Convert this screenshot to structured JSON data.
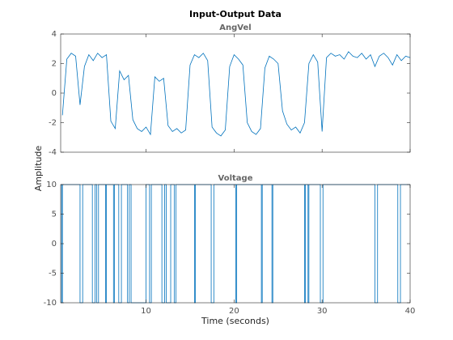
{
  "figure": {
    "title": "Input-Output Data",
    "ylabel": "Amplitude",
    "xlabel": "Time (seconds)"
  },
  "chart_data": [
    {
      "type": "line",
      "title": "AngVel",
      "xlim": [
        0.3,
        40
      ],
      "ylim": [
        -4,
        4
      ],
      "xticks": [
        10,
        20,
        30,
        40
      ],
      "yticks": [
        -4,
        -2,
        0,
        2,
        4
      ],
      "show_xtick_labels": false,
      "x": [
        0.5,
        1,
        1.5,
        2,
        2.5,
        3,
        3.5,
        4,
        4.5,
        5,
        5.5,
        6,
        6.5,
        7,
        7.5,
        8,
        8.5,
        9,
        9.5,
        10,
        10.5,
        11,
        11.5,
        12,
        12.5,
        13,
        13.5,
        14,
        14.5,
        15,
        15.5,
        16,
        16.5,
        17,
        17.5,
        18,
        18.5,
        19,
        19.5,
        20,
        20.5,
        21,
        21.5,
        22,
        22.5,
        23,
        23.5,
        24,
        24.5,
        25,
        25.5,
        26,
        26.5,
        27,
        27.5,
        28,
        28.5,
        29,
        29.5,
        30,
        30.5,
        31,
        31.5,
        32,
        32.5,
        33,
        33.5,
        34,
        34.5,
        35,
        35.5,
        36,
        36.5,
        37,
        37.5,
        38,
        38.5,
        39,
        39.5,
        40
      ],
      "series": [
        {
          "color": "#0072BD",
          "values": [
            -1.5,
            2.3,
            2.7,
            2.5,
            -0.8,
            1.8,
            2.6,
            2.2,
            2.7,
            2.4,
            2.6,
            -1.9,
            -2.4,
            1.5,
            0.9,
            1.2,
            -1.8,
            -2.4,
            -2.6,
            -2.3,
            -2.8,
            1.1,
            0.8,
            1.0,
            -2.2,
            -2.6,
            -2.4,
            -2.7,
            -2.5,
            1.9,
            2.6,
            2.4,
            2.7,
            2.2,
            -2.3,
            -2.7,
            -2.9,
            -2.5,
            1.8,
            2.6,
            2.3,
            1.9,
            -2.0,
            -2.6,
            -2.8,
            -2.4,
            1.7,
            2.5,
            2.3,
            2.0,
            -1.2,
            -2.1,
            -2.5,
            -2.3,
            -2.7,
            -2.0,
            2.0,
            2.6,
            2.1,
            -2.6,
            2.4,
            2.7,
            2.5,
            2.6,
            2.3,
            2.8,
            2.5,
            2.4,
            2.7,
            2.3,
            2.6,
            1.8,
            2.5,
            2.7,
            2.4,
            1.9,
            2.6,
            2.2,
            2.5,
            2.4
          ]
        }
      ]
    },
    {
      "type": "line",
      "title": "Voltage",
      "drawstyle": "steps-post",
      "xlim": [
        0.3,
        40
      ],
      "ylim": [
        -10,
        10
      ],
      "xticks": [
        10,
        20,
        30,
        40
      ],
      "yticks": [
        -10,
        -5,
        0,
        5,
        10
      ],
      "show_xtick_labels": true,
      "x": [
        0.3,
        0.4,
        0.5,
        2.5,
        2.8,
        3.9,
        4.2,
        4.4,
        4.6,
        5.4,
        5.5,
        6.3,
        6.4,
        6.9,
        7.2,
        7.9,
        8.1,
        8.3,
        10.0,
        10.4,
        10.6,
        11.8,
        12.1,
        12.3,
        12.8,
        13.2,
        13.4,
        15.5,
        15.6,
        17.4,
        17.7,
        20.2,
        20.3,
        23.1,
        23.2,
        24.3,
        24.4,
        28.0,
        28.1,
        28.4,
        28.5,
        29.8,
        30.1,
        36.0,
        36.3,
        38.6,
        38.9,
        40
      ],
      "series": [
        {
          "color": "#0072BD",
          "values": [
            10,
            -10,
            10,
            -10,
            10,
            -10,
            10,
            -10,
            10,
            -10,
            10,
            -10,
            10,
            -10,
            10,
            -10,
            10,
            -10,
            10,
            -10,
            10,
            -10,
            10,
            -10,
            10,
            -10,
            10,
            -10,
            10,
            -10,
            10,
            -10,
            10,
            -10,
            10,
            -10,
            10,
            -10,
            10,
            -10,
            10,
            -10,
            10,
            -10,
            10,
            -10,
            10,
            10
          ]
        }
      ]
    }
  ]
}
